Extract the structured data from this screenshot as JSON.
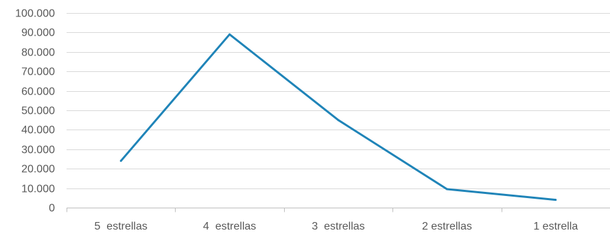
{
  "chart_data": {
    "type": "line",
    "title": "",
    "xlabel": "",
    "ylabel": "",
    "categories": [
      "5  estrellas",
      "4  estrellas",
      "3  estrellas",
      "2 estrellas",
      "1 estrella"
    ],
    "series": [
      {
        "values": [
          24000,
          89000,
          45000,
          9500,
          4000
        ],
        "color": "#1f84b8"
      }
    ],
    "ylim": [
      0,
      100000
    ],
    "y_ticks": [
      0,
      10000,
      20000,
      30000,
      40000,
      50000,
      60000,
      70000,
      80000,
      90000,
      100000
    ],
    "y_tick_labels": [
      "0",
      "10.000",
      "20.000",
      "30.000",
      "40.000",
      "50.000",
      "60.000",
      "70.000",
      "80.000",
      "90.000",
      "100.000"
    ],
    "grid": true,
    "legend": "none"
  }
}
